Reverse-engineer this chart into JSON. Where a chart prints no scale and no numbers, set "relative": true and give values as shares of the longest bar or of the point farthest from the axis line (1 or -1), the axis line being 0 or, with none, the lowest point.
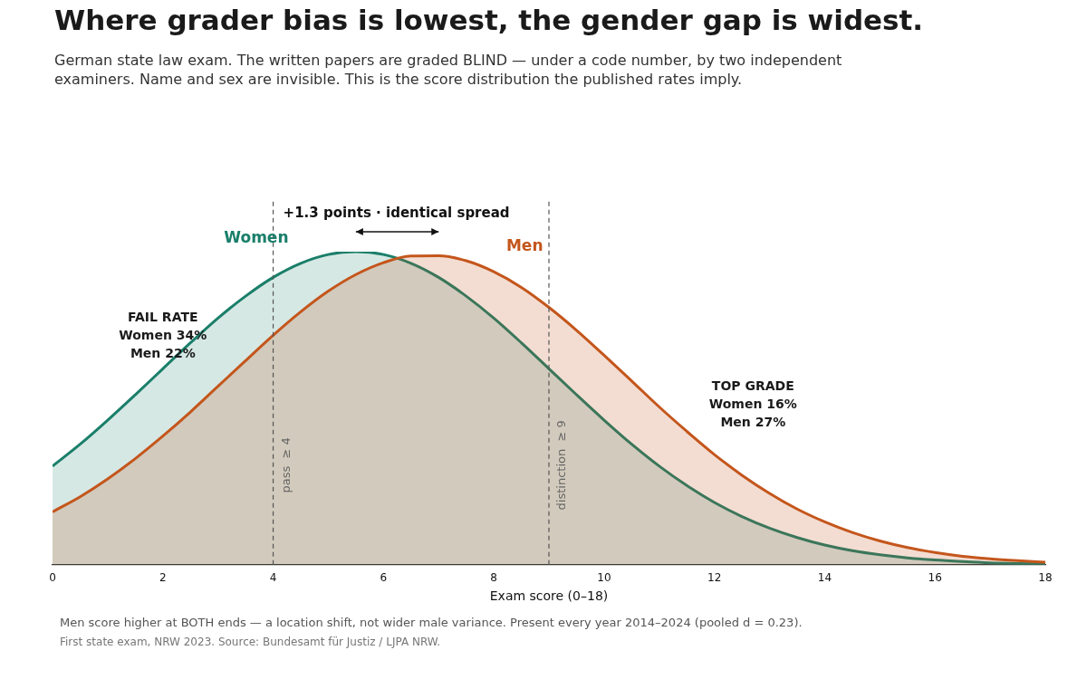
{
  "chart_data": {
    "type": "area",
    "relative": true,
    "title": "Where grader bias is lowest, the gender gap is widest.",
    "subtitle": "German state law exam. The written papers are graded BLIND — under a code number, by two independent examiners. Name and sex are invisible. This is the score distribution the published rates imply.",
    "xlabel": "Exam score (0–18)",
    "x": [
      0,
      0.5,
      1,
      1.5,
      2,
      2.5,
      3,
      3.5,
      4,
      4.5,
      5,
      5.5,
      6,
      6.5,
      7,
      7.5,
      8,
      8.5,
      9,
      9.5,
      10,
      10.5,
      11,
      11.5,
      12,
      12.5,
      13,
      13.5,
      14,
      14.5,
      15,
      15.5,
      16,
      16.5,
      17,
      17.5,
      18
    ],
    "series": [
      {
        "name": "Women",
        "color": "#1a7f6a",
        "values": [
          0.315,
          0.385,
          0.462,
          0.543,
          0.626,
          0.709,
          0.788,
          0.858,
          0.918,
          0.963,
          0.991,
          1,
          0.991,
          0.963,
          0.918,
          0.858,
          0.788,
          0.709,
          0.626,
          0.543,
          0.462,
          0.385,
          0.315,
          0.253,
          0.199,
          0.154,
          0.117,
          0.087,
          0.063,
          0.045,
          0.032,
          0.022,
          0.015,
          0.01,
          0.006,
          0.004,
          0.003
        ]
      },
      {
        "name": "Men",
        "color": "#c4561c",
        "values": [
          0.169,
          0.217,
          0.274,
          0.339,
          0.411,
          0.488,
          0.57,
          0.652,
          0.733,
          0.808,
          0.874,
          0.927,
          0.965,
          0.986,
          0.987,
          0.971,
          0.936,
          0.886,
          0.822,
          0.749,
          0.669,
          0.587,
          0.504,
          0.426,
          0.352,
          0.286,
          0.228,
          0.178,
          0.137,
          0.103,
          0.076,
          0.055,
          0.039,
          0.027,
          0.019,
          0.013,
          0.008
        ]
      }
    ],
    "xlim": [
      0,
      18
    ],
    "xticks": [
      0,
      2,
      4,
      6,
      8,
      10,
      12,
      14,
      16,
      18
    ],
    "tick_labels": "x",
    "grid": false,
    "legend": false,
    "ref_lines": [
      {
        "axis": "x",
        "value": 4,
        "label": "pass  ≥ 4",
        "color": "#555555",
        "line_style": "dashed"
      },
      {
        "axis": "x",
        "value": 9,
        "label": "distinction  ≥ 9",
        "color": "#555555",
        "line_style": "dashed"
      }
    ],
    "annotations": [
      "+1.3 points · identical spread",
      "FAIL RATE\nWomen 34%\nMen 22%",
      "TOP GRADE\nWomen 16%\nMen 27%",
      "Men score higher at BOTH ends — a location shift, not wider male variance. Present every year 2014–2024 (pooled d = 0.23).",
      "First state exam, NRW 2023. Source: Bundesamt für Justiz / LJPA NRW."
    ]
  }
}
